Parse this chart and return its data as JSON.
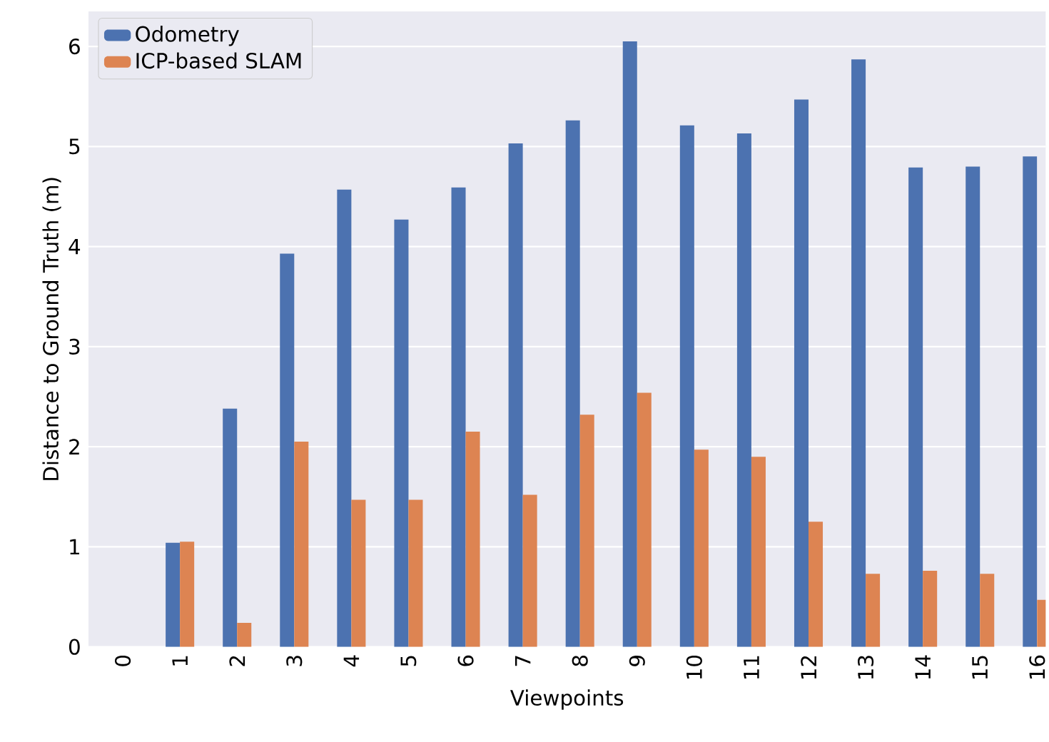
{
  "chart_data": {
    "type": "bar",
    "xlabel": "Viewpoints",
    "ylabel": "Distance to Ground Truth (m)",
    "categories": [
      "0",
      "1",
      "2",
      "3",
      "4",
      "5",
      "6",
      "7",
      "8",
      "9",
      "10",
      "11",
      "12",
      "13",
      "14",
      "15",
      "16"
    ],
    "series": [
      {
        "name": "Odometry",
        "color": "#4c72b0",
        "values": [
          0,
          1.04,
          2.38,
          3.93,
          4.57,
          4.27,
          4.59,
          5.03,
          5.26,
          6.05,
          5.21,
          5.13,
          5.47,
          5.87,
          4.79,
          4.8,
          4.9
        ]
      },
      {
        "name": "ICP-based SLAM",
        "color": "#dd8452",
        "values": [
          0,
          1.05,
          0.24,
          2.05,
          1.47,
          1.47,
          2.15,
          1.52,
          2.32,
          2.54,
          1.97,
          1.9,
          1.25,
          0.73,
          0.76,
          0.73,
          0.47
        ]
      }
    ],
    "ylim": [
      0,
      6.35
    ],
    "yticks": [
      0,
      1,
      2,
      3,
      4,
      5,
      6
    ],
    "grid": "y",
    "legend": "top left"
  }
}
